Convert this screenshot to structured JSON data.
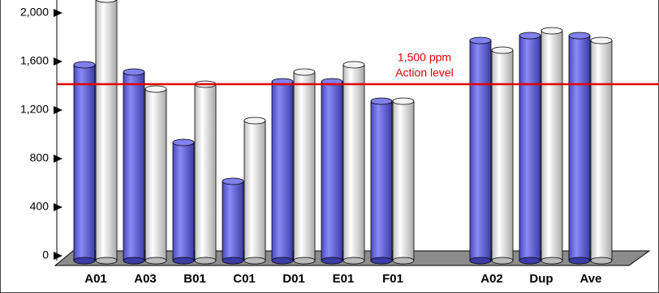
{
  "chart_data": {
    "type": "bar",
    "categories": [
      "A01",
      "A03",
      "B01",
      "C01",
      "D01",
      "E01",
      "F01",
      null,
      "A02",
      "Dup",
      "Ave"
    ],
    "series": [
      {
        "color": "#6b6be6",
        "values": [
          1660,
          1600,
          1020,
          700,
          1520,
          1520,
          1360,
          null,
          1860,
          1900,
          1900
        ]
      },
      {
        "color": "#e4e4e4",
        "values": [
          2200,
          1460,
          1500,
          1200,
          1600,
          1660,
          1360,
          null,
          1780,
          1940,
          1860
        ]
      }
    ],
    "ylim": [
      0,
      2200
    ],
    "yticks": [
      0,
      400,
      800,
      {
        "value": 1200,
        "label": "1,200"
      },
      {
        "value": 1600,
        "label": "1,600"
      },
      {
        "value": 2000,
        "label": "2,000"
      }
    ],
    "reference_line": {
      "value": 1500,
      "color": "#e00000",
      "label": [
        "1,500 ppm",
        "Action level"
      ]
    }
  }
}
